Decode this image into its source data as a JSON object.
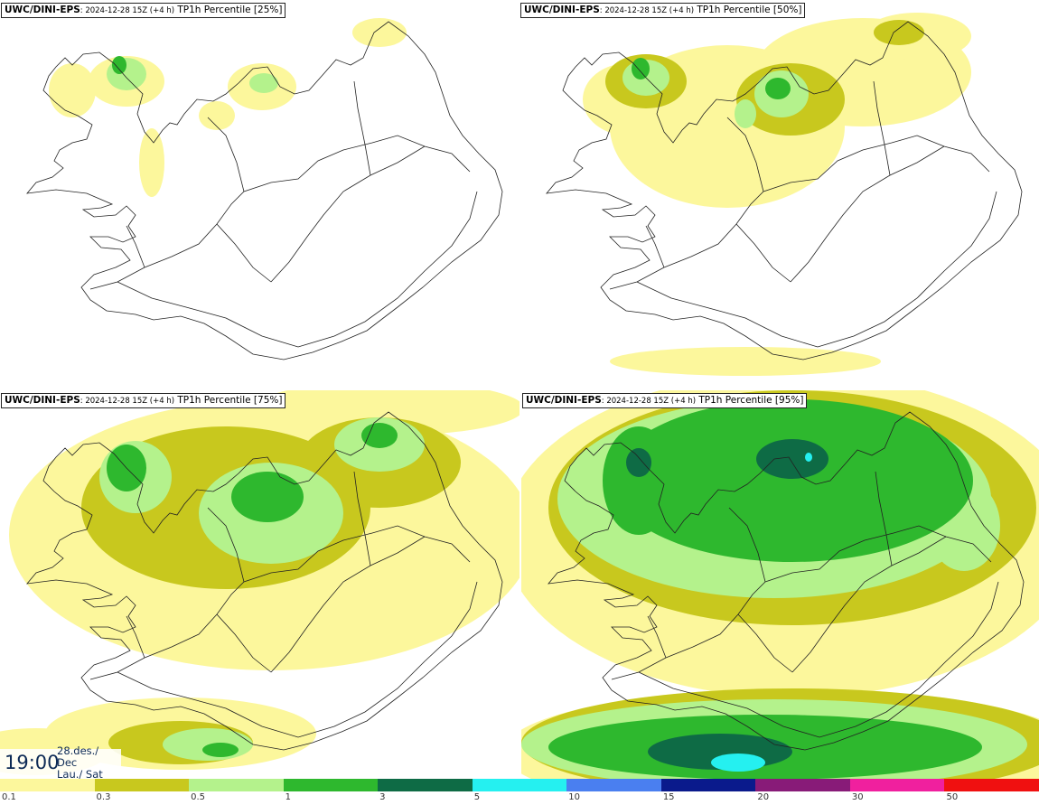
{
  "panels": [
    {
      "id": "p25",
      "model": "UWC/DINI-EPS",
      "run": ": 2024-12-28 15Z (+4 h)",
      "field": " TP1h Percentile [25%]"
    },
    {
      "id": "p50",
      "model": "UWC/DINI-EPS",
      "run": ": 2024-12-28 15Z (+4 h)",
      "field": " TP1h Percentile [50%]"
    },
    {
      "id": "p75",
      "model": "UWC/DINI-EPS",
      "run": ": 2024-12-28 15Z (+4 h)",
      "field": " TP1h Percentile [75%]"
    },
    {
      "id": "p95",
      "model": "UWC/DINI-EPS",
      "run": ": 2024-12-28 15Z (+4 h)",
      "field": " TP1h Percentile [95%]"
    }
  ],
  "valid_time": {
    "time": "19:00",
    "date_line1": "28.des./ Dec",
    "date_line2": "Lau./ Sat"
  },
  "legend": {
    "colors": [
      "#fcf79c",
      "#c8c81e",
      "#b4f28c",
      "#2eb82e",
      "#0e6b45",
      "#25f0f0",
      "#4a7ff0",
      "#0a1a8c",
      "#881b78",
      "#f0209e",
      "#f01010"
    ],
    "labels": [
      "0.1",
      "0.3",
      "0.5",
      "1",
      "3",
      "5",
      "10",
      "15",
      "20",
      "30",
      "50"
    ]
  }
}
